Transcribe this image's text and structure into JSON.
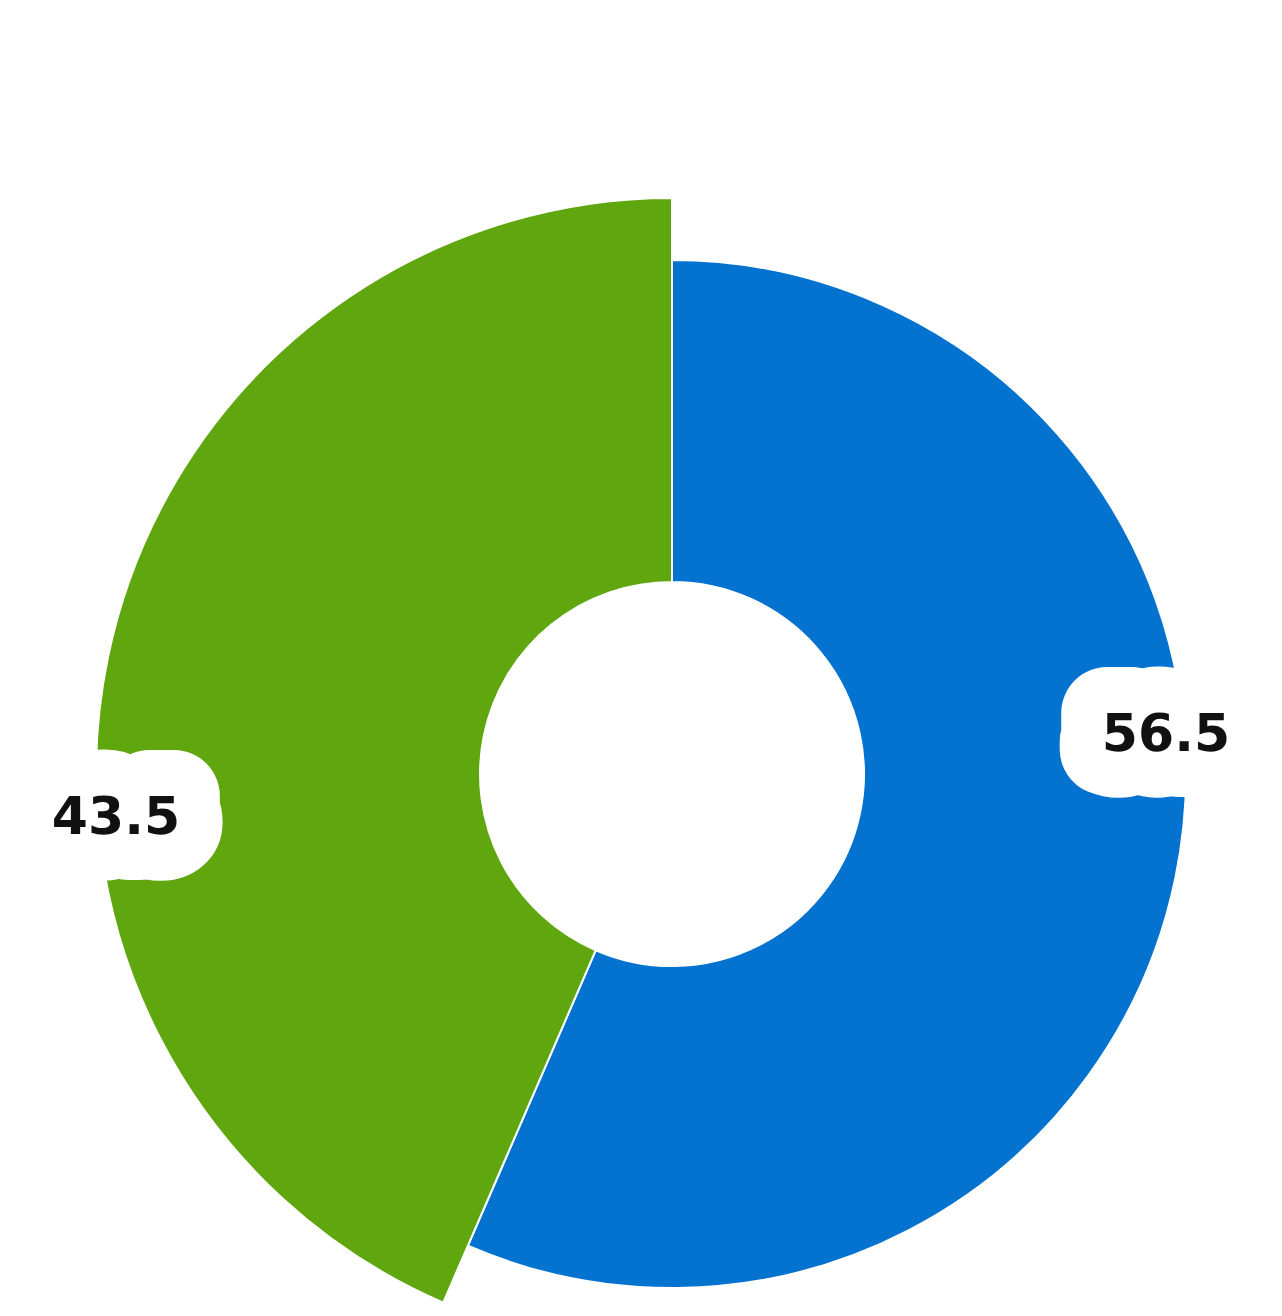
{
  "chart_data": {
    "type": "donut",
    "categories": [
      null,
      null
    ],
    "values": [
      56.5,
      43.5
    ],
    "colors": [
      "#0472cf",
      "#5fa60f"
    ],
    "data_labels": true
  }
}
